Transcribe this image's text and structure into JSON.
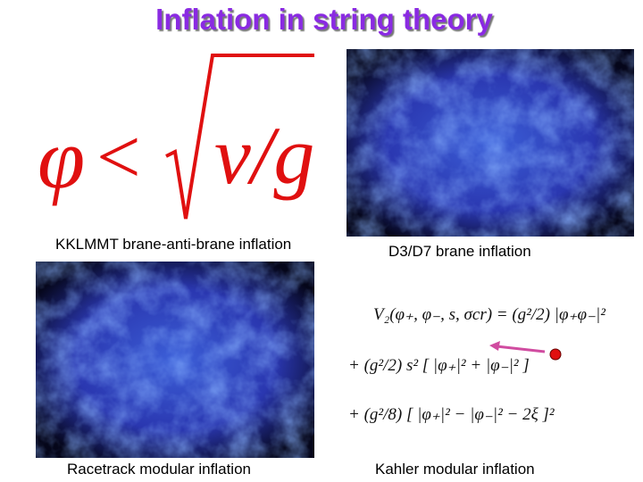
{
  "header": {
    "title": "Inflation in string theory"
  },
  "formula": {
    "lhs": "φ",
    "relation": "<",
    "radicand": "v/g"
  },
  "captions": [
    "KKLMMT brane-anti-brane inflation",
    "D3/D7 brane inflation",
    "Racetrack modular inflation",
    "Kahler modular inflation"
  ],
  "equation": {
    "lines": [
      "V₂(φ₊, φ₋, s, σcr) = (g²/2) |φ₊φ₋|²",
      "+ (g²/2) s² [ |φ₊|² + |φ₋|² ]",
      "+ (g²/8) [ |φ₊|² − |φ₋|² − 2ξ ]²"
    ]
  }
}
